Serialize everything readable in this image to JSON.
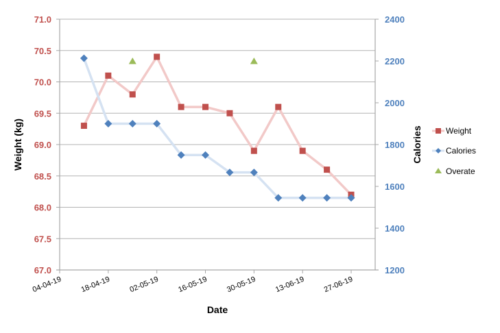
{
  "chart_data": {
    "type": "line",
    "title": "",
    "xlabel": "Date",
    "ylabel": "Weight (kg)",
    "ylabel_right": "Calories",
    "x_tick_labels": [
      "04-04-19",
      "18-04-19",
      "02-05-19",
      "16-05-19",
      "30-05-19",
      "13-06-19",
      "27-06-19"
    ],
    "ylim": [
      67.0,
      71.0
    ],
    "ylim_right": [
      1200,
      2400
    ],
    "y_ticks": [
      "67.0",
      "67.5",
      "68.0",
      "68.5",
      "69.0",
      "69.5",
      "70.0",
      "70.5",
      "71.0"
    ],
    "y_ticks_right": [
      "1200",
      "1400",
      "1600",
      "1800",
      "2000",
      "2200",
      "2400"
    ],
    "grid": true,
    "legend_position": "right",
    "x": [
      "11-04-19",
      "18-04-19",
      "25-04-19",
      "02-05-19",
      "09-05-19",
      "16-05-19",
      "23-05-19",
      "30-05-19",
      "06-06-19",
      "13-06-19",
      "20-06-19",
      "27-06-19"
    ],
    "series": [
      {
        "name": "Weight",
        "axis": "left",
        "marker": "square",
        "color": "#c0504d",
        "line_color": "#f2c9c8",
        "values": [
          69.3,
          70.1,
          69.8,
          70.4,
          69.6,
          69.6,
          69.5,
          68.9,
          69.6,
          68.9,
          68.6,
          68.2
        ]
      },
      {
        "name": "Calories",
        "axis": "right",
        "marker": "diamond",
        "color": "#4f81bd",
        "line_color": "#d5e2f2",
        "values": [
          2213,
          1900,
          1900,
          1900,
          1750,
          1750,
          1667,
          1667,
          1545,
          1545,
          1545,
          1545
        ]
      },
      {
        "name": "Overate",
        "axis": "right",
        "marker": "triangle",
        "color": "#9bbb59",
        "line_color": null,
        "points": [
          {
            "x": "25-04-19",
            "y": 2200
          },
          {
            "x": "30-05-19",
            "y": 2200
          }
        ]
      }
    ]
  },
  "legend": {
    "items": [
      {
        "label": "Weight"
      },
      {
        "label": "Calories"
      },
      {
        "label": "Overate"
      }
    ]
  }
}
